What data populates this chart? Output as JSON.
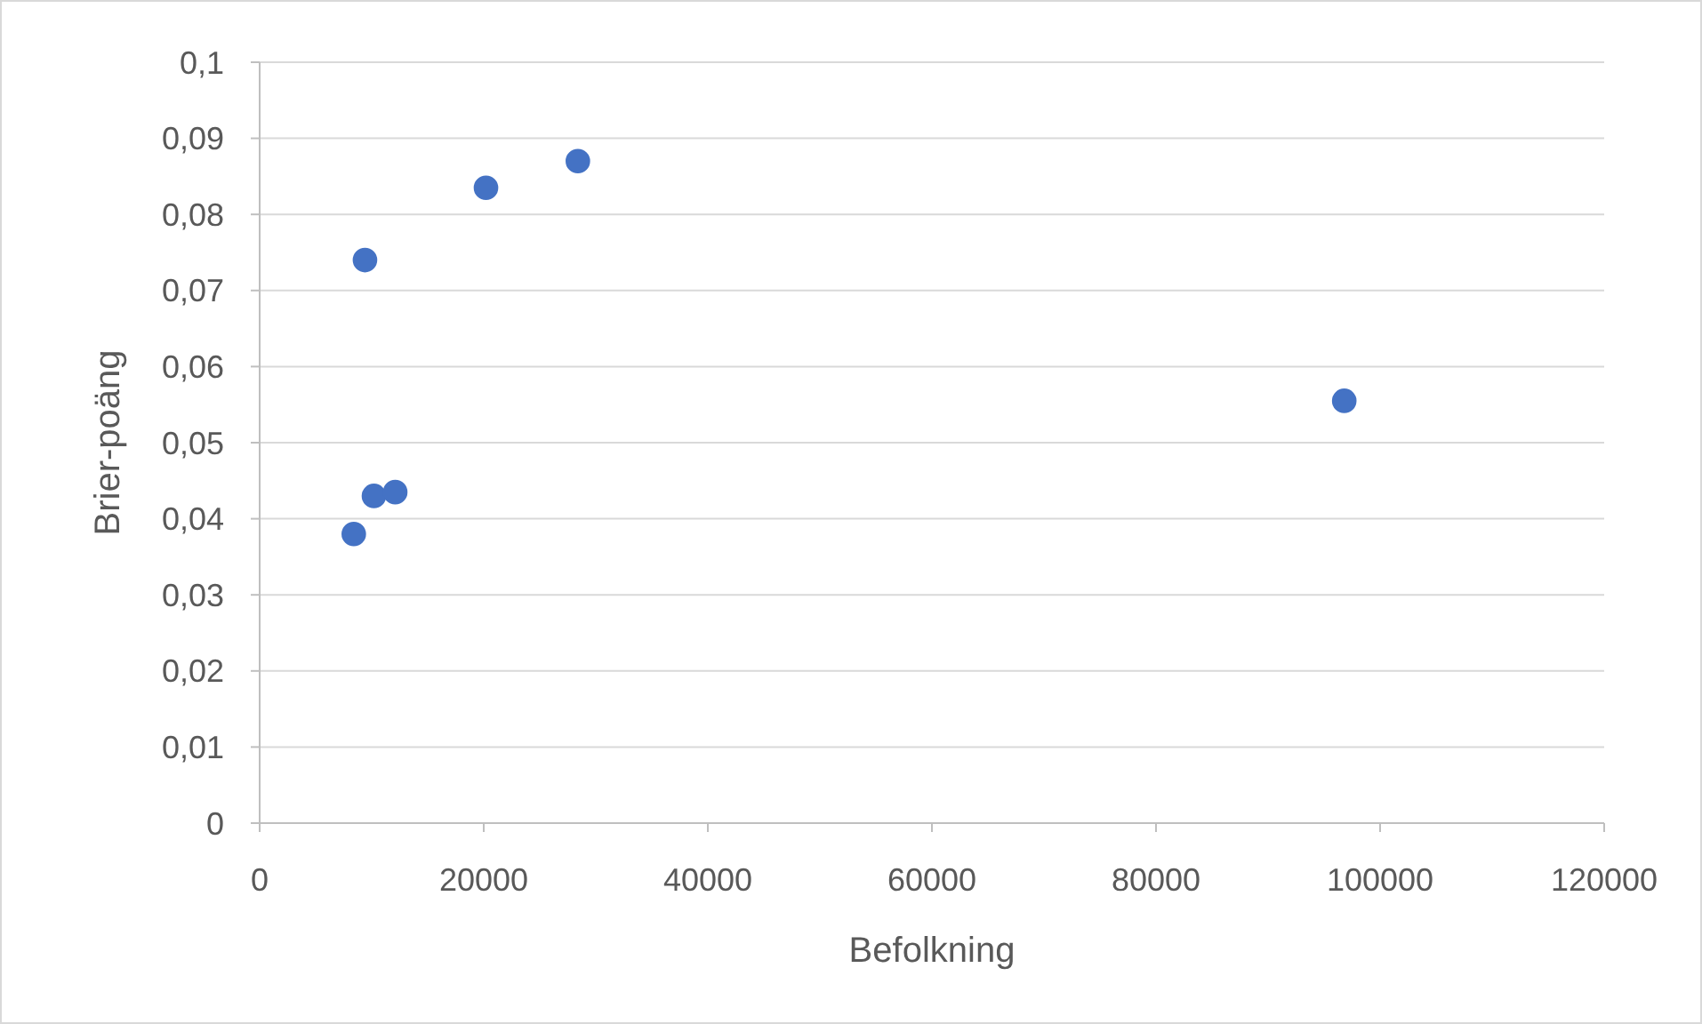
{
  "chart_data": {
    "type": "scatter",
    "xlabel": "Befolkning",
    "ylabel": "Brier-poäng",
    "x": [
      8400,
      9400,
      10200,
      12100,
      20200,
      28400,
      96800
    ],
    "values": [
      0.038,
      0.074,
      0.043,
      0.0435,
      0.0835,
      0.087,
      0.0555
    ],
    "color": "#4472c4",
    "marker": "circle",
    "xlim": [
      0,
      120000
    ],
    "xticks": [
      0,
      20000,
      40000,
      60000,
      80000,
      100000,
      120000
    ],
    "ylim": [
      0,
      0.1
    ],
    "yticks": [
      {
        "value": 0,
        "label": "0"
      },
      {
        "value": 0.01,
        "label": "0,01"
      },
      {
        "value": 0.02,
        "label": "0,02"
      },
      {
        "value": 0.03,
        "label": "0,03"
      },
      {
        "value": 0.04,
        "label": "0,04"
      },
      {
        "value": 0.05,
        "label": "0,05"
      },
      {
        "value": 0.06,
        "label": "0,06"
      },
      {
        "value": 0.07,
        "label": "0,07"
      },
      {
        "value": 0.08,
        "label": "0,08"
      },
      {
        "value": 0.09,
        "label": "0,09"
      },
      {
        "value": 0.1,
        "label": "0,1"
      }
    ],
    "grid": "y"
  }
}
